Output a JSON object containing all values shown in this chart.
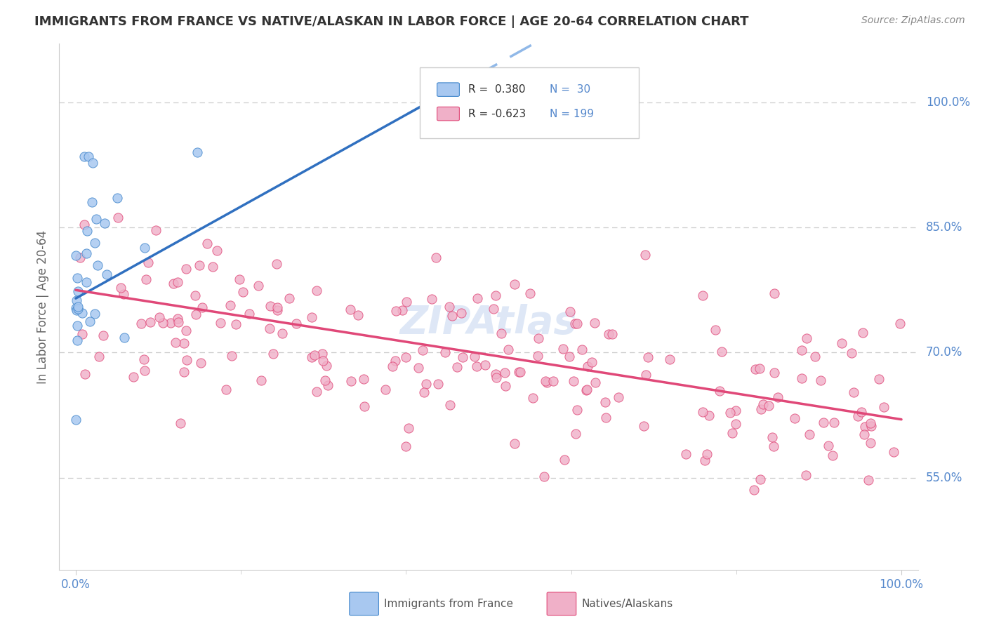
{
  "title": "IMMIGRANTS FROM FRANCE VS NATIVE/ALASKAN IN LABOR FORCE | AGE 20-64 CORRELATION CHART",
  "source": "Source: ZipAtlas.com",
  "ylabel": "In Labor Force | Age 20-64",
  "ytick_labels": [
    "100.0%",
    "85.0%",
    "70.0%",
    "55.0%"
  ],
  "ytick_values": [
    1.0,
    0.85,
    0.7,
    0.55
  ],
  "legend_r_blue": "R=  0.380",
  "legend_n_blue": "N=  30",
  "legend_r_pink": "R= -0.623",
  "legend_n_pink": "N= 199",
  "blue_fill": "#a8c8f0",
  "blue_edge": "#4488cc",
  "pink_fill": "#f0b0c8",
  "pink_edge": "#e04878",
  "blue_line": "#3070c0",
  "blue_dash": "#90b8e8",
  "pink_line": "#e04878",
  "watermark_color": "#c8d8f0",
  "bg_color": "#ffffff",
  "grid_color": "#cccccc",
  "title_color": "#333333",
  "source_color": "#888888",
  "axis_label_color": "#5588cc",
  "ylabel_color": "#666666"
}
